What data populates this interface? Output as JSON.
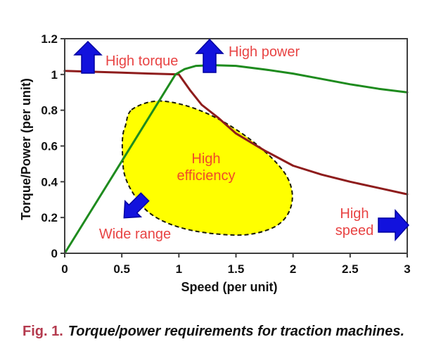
{
  "page": {
    "background": "#ffffff"
  },
  "caption": {
    "label": "Fig. 1.",
    "label_color": "#b43a4e",
    "text": "Torque/power requirements for traction machines."
  },
  "chart_data": {
    "type": "line",
    "title": "",
    "xlabel": "Speed (per unit)",
    "ylabel": "Torque/Power (per unit)",
    "xlim": [
      0,
      3
    ],
    "ylim": [
      0,
      1.2
    ],
    "x_ticks": [
      "0",
      "0.5",
      "1",
      "1.5",
      "2",
      "2.5",
      "3"
    ],
    "y_ticks": [
      "0",
      "0.2",
      "0.4",
      "0.6",
      "0.8",
      "1",
      "1.2"
    ],
    "grid": false,
    "legend": "none",
    "frame_color": "#3f3f3f",
    "series": [
      {
        "name": "torque",
        "color": "#8e1c1c",
        "x": [
          0,
          0.25,
          0.5,
          0.75,
          1.0,
          1.1,
          1.2,
          1.35,
          1.5,
          1.75,
          2.0,
          2.25,
          2.5,
          2.75,
          3.0
        ],
        "values": [
          1.02,
          1.015,
          1.01,
          1.005,
          1.0,
          0.91,
          0.83,
          0.755,
          0.67,
          0.575,
          0.49,
          0.44,
          0.4,
          0.365,
          0.33
        ]
      },
      {
        "name": "power",
        "color": "#1e8b1e",
        "x": [
          0,
          0.5,
          0.97,
          1.05,
          1.15,
          1.3,
          1.5,
          1.75,
          2.0,
          2.25,
          2.5,
          2.75,
          3.0
        ],
        "values": [
          0,
          0.515,
          1.0,
          1.03,
          1.048,
          1.052,
          1.048,
          1.028,
          1.005,
          0.975,
          0.945,
          0.92,
          0.9
        ]
      }
    ],
    "efficiency_region": {
      "fill": "#ffff00",
      "border_color": "#1a1a00",
      "border_style": "dashed",
      "x_range": [
        0.5,
        2.0
      ],
      "y_range": [
        0.1,
        0.85
      ]
    },
    "arrow_color": "#1212dd",
    "arrow_edge_color": "#0000a0",
    "annotations": [
      {
        "id": "high_torque",
        "label": "High torque",
        "color": "#e84444",
        "arrow": "up"
      },
      {
        "id": "high_power",
        "label": "High power",
        "color": "#e84444",
        "arrow": "up"
      },
      {
        "id": "high_efficiency",
        "label": "High efficiency",
        "color": "#f04a28",
        "arrow": "none"
      },
      {
        "id": "wide_range",
        "label": "Wide range",
        "color": "#e84444",
        "arrow": "down-left"
      },
      {
        "id": "high_speed",
        "label": "High speed",
        "color": "#e84444",
        "arrow": "right"
      }
    ]
  }
}
